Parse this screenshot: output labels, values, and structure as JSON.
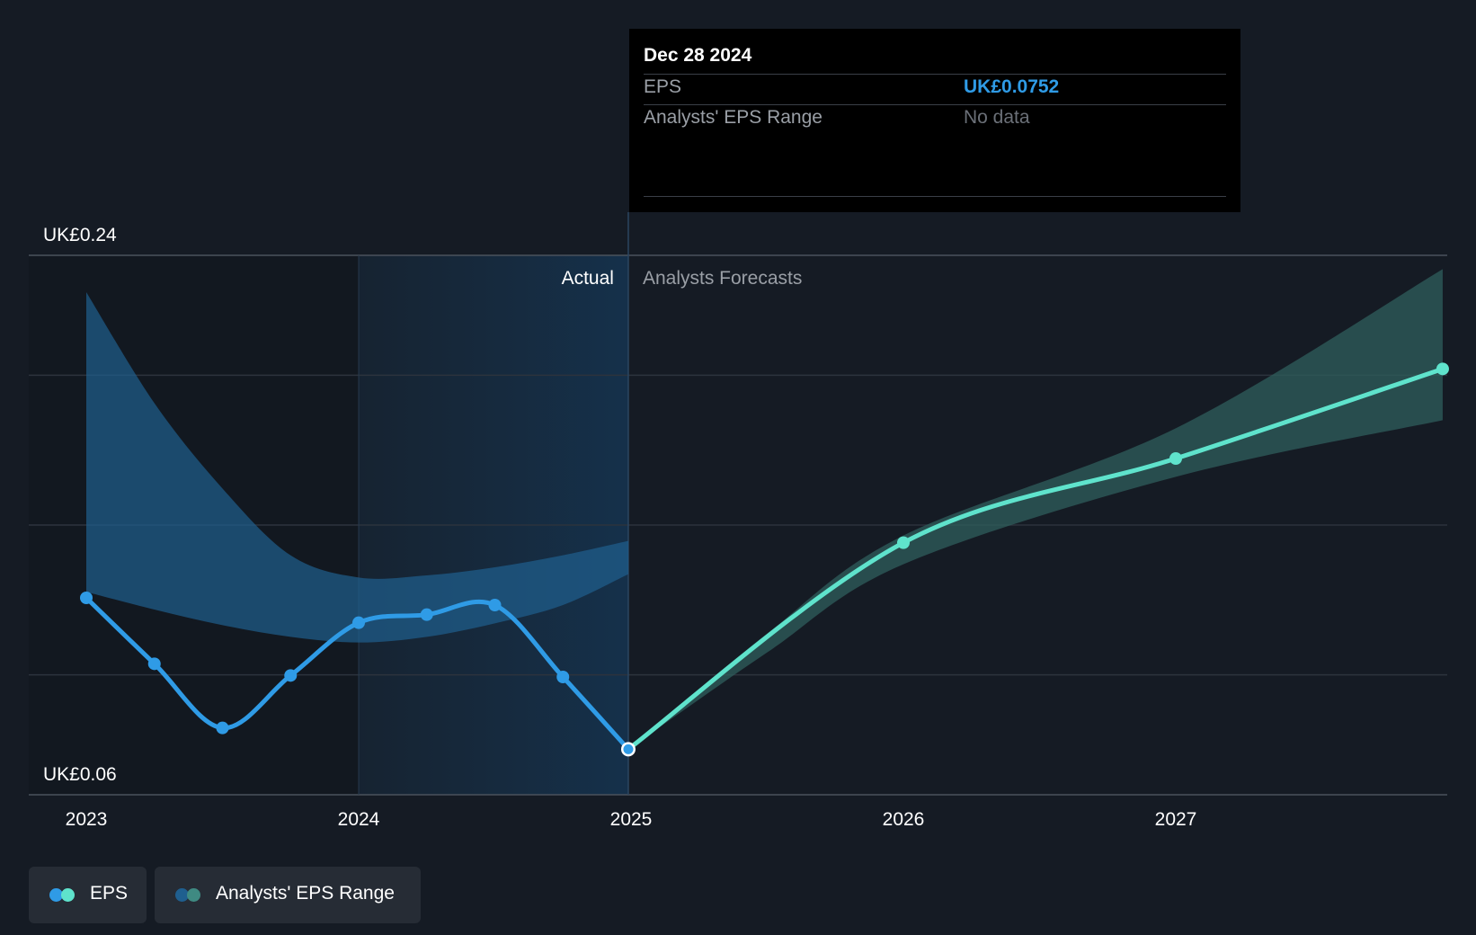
{
  "tooltip": {
    "date": "Dec 28 2024",
    "eps_label": "EPS",
    "eps_value": "UK£0.0752",
    "range_label": "Analysts' EPS Range",
    "range_value": "No data"
  },
  "legend": {
    "eps_label": "EPS",
    "range_label": "Analysts' EPS Range"
  },
  "colors": {
    "background": "#151b24",
    "eps_actual": "#2f9be6",
    "eps_forecast": "#5fe3cc",
    "range_actual": "#1f5f8f",
    "range_forecast": "#2f5f5c"
  },
  "chart_data": {
    "type": "line",
    "y_labels": [
      "UK£0.24",
      "UK£0.06"
    ],
    "ylim": [
      0.06,
      0.24
    ],
    "xlim": [
      2022.98,
      2027.98
    ],
    "x_ticks": [
      2023,
      2024,
      2025,
      2026,
      2027
    ],
    "x_tick_labels": [
      "2023",
      "2024",
      "2025",
      "2026",
      "2027"
    ],
    "section_labels": {
      "actual": "Actual",
      "forecast": "Analysts Forecasts"
    },
    "divider_x": 2024.99,
    "highlight_start_x": 2024.0,
    "grid": true,
    "series": [
      {
        "name": "EPS",
        "role": "actual",
        "x": [
          2023.0,
          2023.25,
          2023.5,
          2023.75,
          2024.0,
          2024.25,
          2024.5,
          2024.75,
          2024.99
        ],
        "y": [
          0.1257,
          0.1037,
          0.0823,
          0.0998,
          0.1174,
          0.1201,
          0.1233,
          0.0993,
          0.0752
        ]
      },
      {
        "name": "EPS",
        "role": "forecast",
        "x": [
          2024.99,
          2026.0,
          2027.0,
          2027.98
        ],
        "y": [
          0.0752,
          0.1441,
          0.1722,
          0.2021
        ]
      },
      {
        "name": "Analysts' EPS Range",
        "role": "actual",
        "x": [
          2023.0,
          2023.25,
          2023.5,
          2023.75,
          2024.0,
          2024.25,
          2024.5,
          2024.75,
          2024.99
        ],
        "high": [
          0.2277,
          0.1907,
          0.1622,
          0.1399,
          0.1325,
          0.1332,
          0.1359,
          0.1399,
          0.1447
        ],
        "low": [
          0.1277,
          0.1218,
          0.1166,
          0.1127,
          0.1108,
          0.1127,
          0.1172,
          0.1233,
          0.1336
        ]
      },
      {
        "name": "Analysts' EPS Range",
        "role": "forecast",
        "x": [
          2024.99,
          2025.5,
          2026.0,
          2027.0,
          2027.98
        ],
        "high": [
          0.0752,
          0.1138,
          0.1465,
          0.1823,
          0.2354
        ],
        "low": [
          0.0752,
          0.1075,
          0.1369,
          0.1661,
          0.185
        ]
      }
    ]
  }
}
